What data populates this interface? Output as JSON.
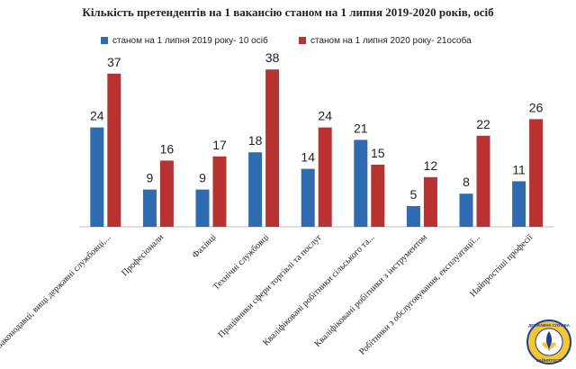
{
  "chart_data": {
    "type": "bar",
    "title": "Кількість претендентів на 1 вакансію станом на 1 липня 2019-2020 років, осіб",
    "categories": [
      "Законодавці, вищі державні службовці,...",
      "Професіонали",
      "Фахівці",
      "Технічні службовці",
      "Працівники сфери торгівлі та послуг",
      "Кваліфіковані робітники сільського та...",
      "Кваліфіковані робітники з інструментом",
      "Робітники з обслуговування, експлуатації...",
      "Найпростіші професії"
    ],
    "series": [
      {
        "name": "станом на 1 липня  2019 року- 10 осіб",
        "color": "#2e6bb0",
        "values": [
          24,
          9,
          9,
          18,
          14,
          21,
          5,
          8,
          11
        ]
      },
      {
        "name": "станом на 1 липня  2020 року- 21особа",
        "color": "#b83232",
        "values": [
          37,
          16,
          17,
          38,
          24,
          15,
          12,
          22,
          26
        ]
      }
    ],
    "ylim": [
      0,
      38
    ],
    "grid": false,
    "legend_position": "top"
  },
  "logo": {
    "text_top": "ДЕРЖАВНА СЛУЖБА",
    "text_bottom": "ЗАЙНЯТОСТІ"
  }
}
